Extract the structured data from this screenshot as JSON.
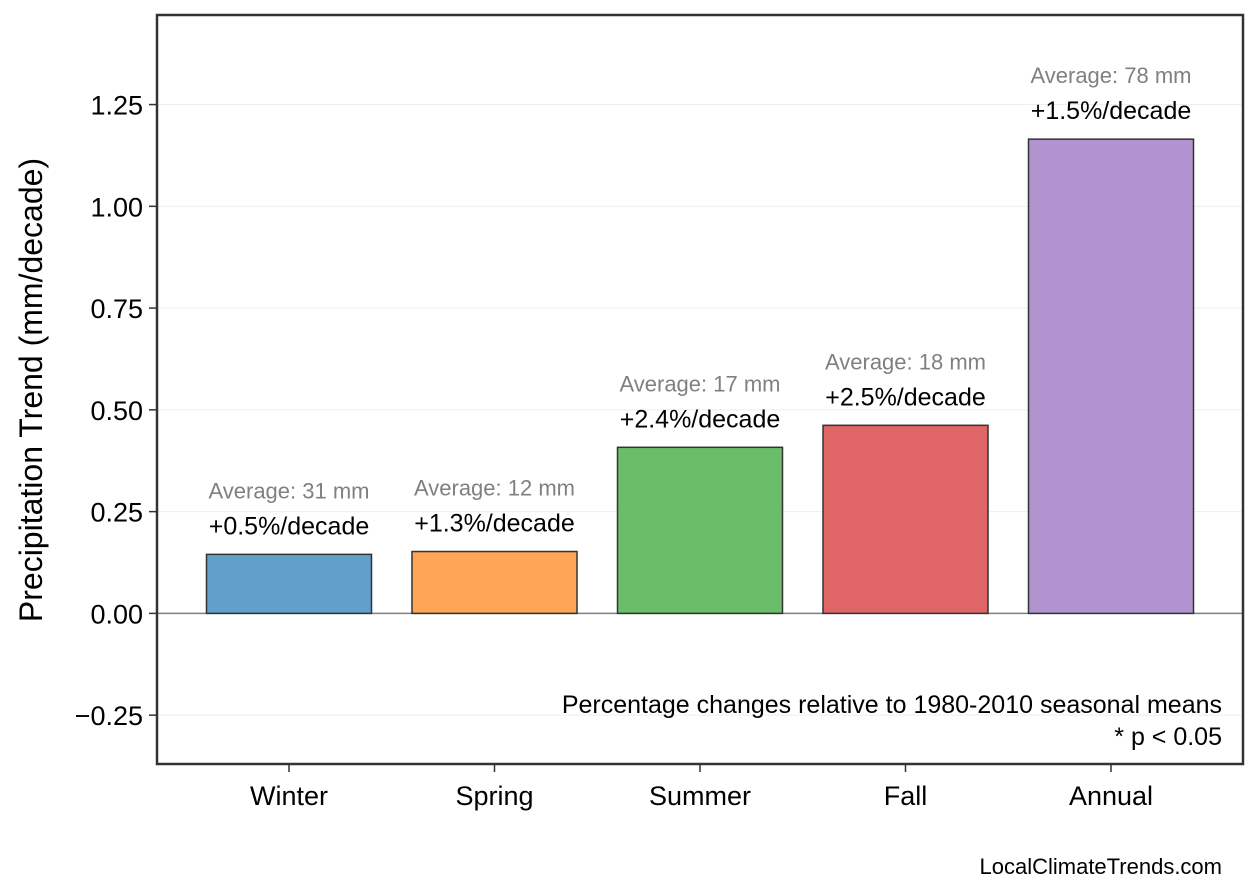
{
  "chart_data": {
    "type": "bar",
    "categories": [
      "Winter",
      "Spring",
      "Summer",
      "Fall",
      "Annual"
    ],
    "values": [
      0.145,
      0.152,
      0.408,
      0.462,
      1.165
    ],
    "percent_labels": [
      "+0.5%/decade",
      "+1.3%/decade",
      "+2.4%/decade",
      "+2.5%/decade",
      "+1.5%/decade"
    ],
    "average_labels": [
      "Average: 31 mm",
      "Average: 12 mm",
      "Average: 17 mm",
      "Average: 18 mm",
      "Average: 78 mm"
    ],
    "colors": [
      "#62a0cb",
      "#ffa555",
      "#6abe6a",
      "#e06566",
      "#b193cf"
    ],
    "ylabel": "Precipitation Trend (mm/decade)",
    "xlabel": "",
    "title": "",
    "ylim": [
      -0.37,
      1.47
    ],
    "yticks": [
      -0.25,
      0.0,
      0.25,
      0.5,
      0.75,
      1.0,
      1.25
    ],
    "ytick_labels": [
      "−0.25",
      "0.00",
      "0.25",
      "0.50",
      "0.75",
      "1.00",
      "1.25"
    ],
    "grid": true,
    "zero_line": true
  },
  "notes": [
    "Percentage changes relative to 1980-2010 seasonal means",
    "* p < 0.05"
  ],
  "footer": "LocalClimateTrends.com",
  "colors": {
    "frame": "#333333",
    "grid": "#eeeeee",
    "zero_line": "#808080",
    "bar_edge": "#333333"
  }
}
